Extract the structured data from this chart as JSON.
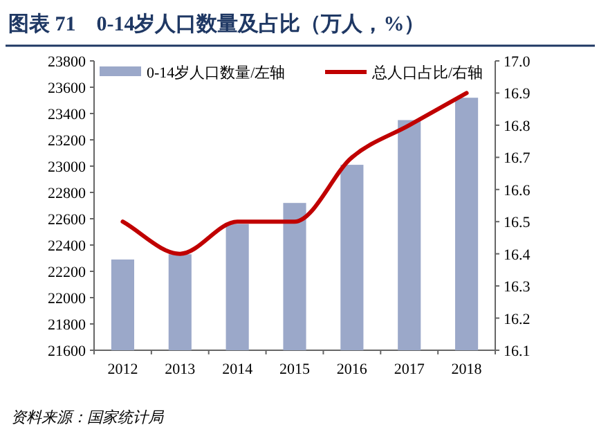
{
  "chart_data": {
    "type": "bar",
    "title": "图表 71　0-14岁人口数量及占比（万人，%）",
    "categories": [
      "2012",
      "2013",
      "2014",
      "2015",
      "2016",
      "2017",
      "2018"
    ],
    "series": [
      {
        "name": "0-14岁人口数量/左轴",
        "color": "#9ba8c9",
        "values": [
          22290,
          22330,
          22560,
          22720,
          23010,
          23350,
          23520
        ]
      },
      {
        "name": "总人口占比/右轴",
        "type": "line",
        "axis": "y2",
        "color": "#c00000",
        "values": [
          16.5,
          16.4,
          16.5,
          16.5,
          16.7,
          16.8,
          16.9
        ]
      }
    ],
    "ylim": [
      21600,
      23800
    ],
    "yticks": [
      21600,
      21800,
      22000,
      22200,
      22400,
      22600,
      22800,
      23000,
      23200,
      23400,
      23600,
      23800
    ],
    "y2lim": [
      16.1,
      17.0
    ],
    "y2ticks": [
      {
        "value": 16.1,
        "label": "16.1"
      },
      {
        "value": 16.2,
        "label": "16.2"
      },
      {
        "value": 16.3,
        "label": "16.3"
      },
      {
        "value": 16.4,
        "label": "16.4"
      },
      {
        "value": 16.5,
        "label": "16.5"
      },
      {
        "value": 16.6,
        "label": "16.6"
      },
      {
        "value": 16.7,
        "label": "16.7"
      },
      {
        "value": 16.8,
        "label": "16.8"
      },
      {
        "value": 16.9,
        "label": "16.9"
      },
      {
        "value": 17.0,
        "label": "17.0"
      }
    ],
    "legend": "top",
    "grid": false,
    "annotations": [
      "资料来源：国家统计局"
    ]
  }
}
